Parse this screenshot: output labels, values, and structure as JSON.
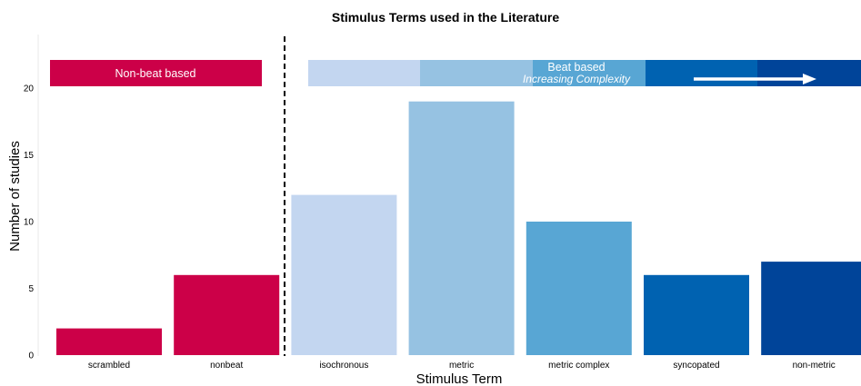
{
  "chart_data": {
    "type": "bar",
    "title": "Stimulus Terms used in the Literature",
    "xlabel": "Stimulus Term",
    "ylabel": "Number of studies",
    "categories": [
      "scrambled",
      "nonbeat",
      "isochronous",
      "metric",
      "metric complex",
      "syncopated",
      "non-metric"
    ],
    "values": [
      2,
      6,
      12,
      19,
      10,
      6,
      7
    ],
    "colors": [
      "#CC0048",
      "#CC0048",
      "#C3D6F0",
      "#96C2E2",
      "#58A6D4",
      "#0062B1",
      "#004499"
    ],
    "ylim": [
      0,
      24
    ],
    "yticks": [
      0,
      5,
      10,
      15,
      20
    ],
    "grid": false,
    "annotations": {
      "non_beat_label": "Non-beat based",
      "beat_label": "Beat based",
      "beat_sublabel": "Increasing Complexity",
      "non_beat_color": "#CC0048",
      "beat_colors": [
        "#C3D6F0",
        "#96C2E2",
        "#58A6D4",
        "#0062B1",
        "#004499"
      ],
      "divider_between": [
        "nonbeat",
        "isochronous"
      ]
    }
  }
}
